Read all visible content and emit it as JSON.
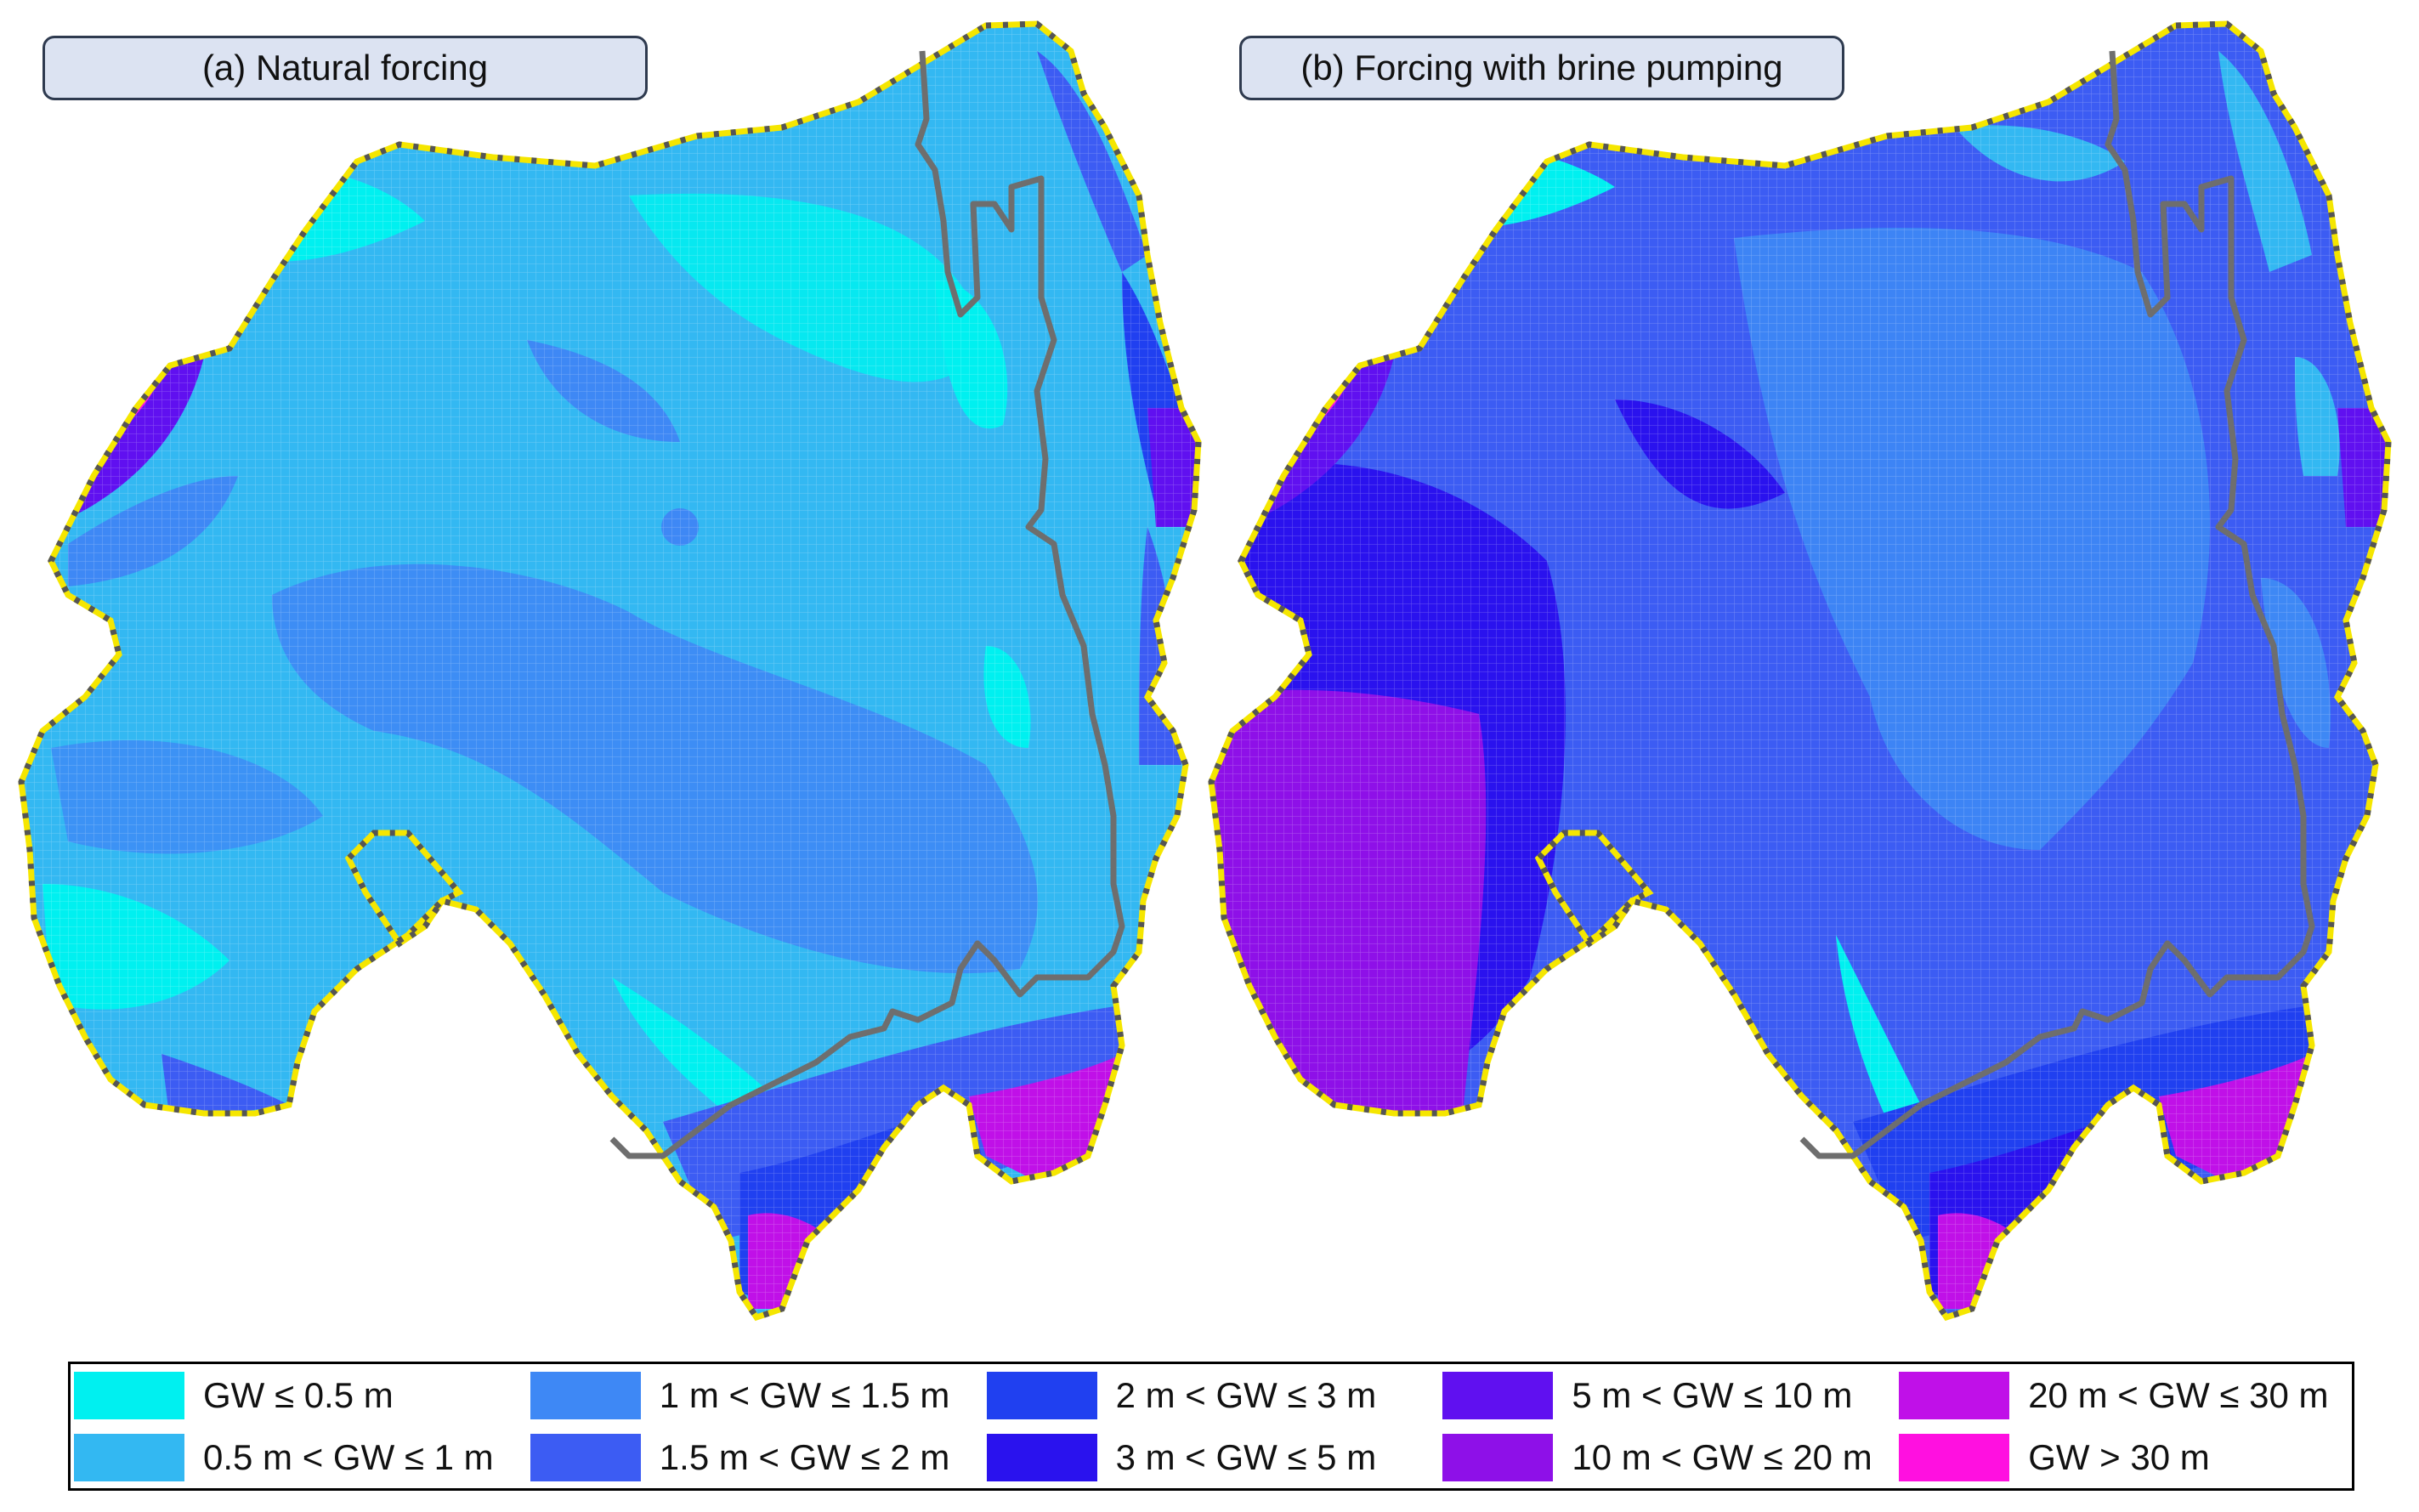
{
  "panels": [
    {
      "id": "a",
      "label": "(a) Natural forcing"
    },
    {
      "id": "b",
      "label": "(b) Forcing with brine pumping"
    }
  ],
  "legend": [
    {
      "label": "GW ≤  0.5 m",
      "color": "#00f0f0"
    },
    {
      "label": "0.5 m < GW ≤ 1 m",
      "color": "#33b8f2"
    },
    {
      "label": "1 m < GW ≤ 1.5 m",
      "color": "#3e88f5"
    },
    {
      "label": "1.5 m < GW ≤ 2 m",
      "color": "#3c5cf3"
    },
    {
      "label": "2 m < GW ≤ 3 m",
      "color": "#2040f0"
    },
    {
      "label": "3 m < GW ≤ 5 m",
      "color": "#2a12ee"
    },
    {
      "label": "5 m < GW ≤ 10 m",
      "color": "#6010f0"
    },
    {
      "label": "10 m < GW ≤ 20 m",
      "color": "#8e10e8"
    },
    {
      "label": "20 m < GW ≤ 30 m",
      "color": "#c010e8"
    },
    {
      "label": "GW > 30 m",
      "color": "#ff10e0"
    }
  ],
  "map_style": {
    "boundary_color": "#f5e600",
    "boundary_dot_color": "#555555",
    "subbasin_outline_color": "#6e6e6e",
    "grid_line_color": "#ffffff"
  }
}
